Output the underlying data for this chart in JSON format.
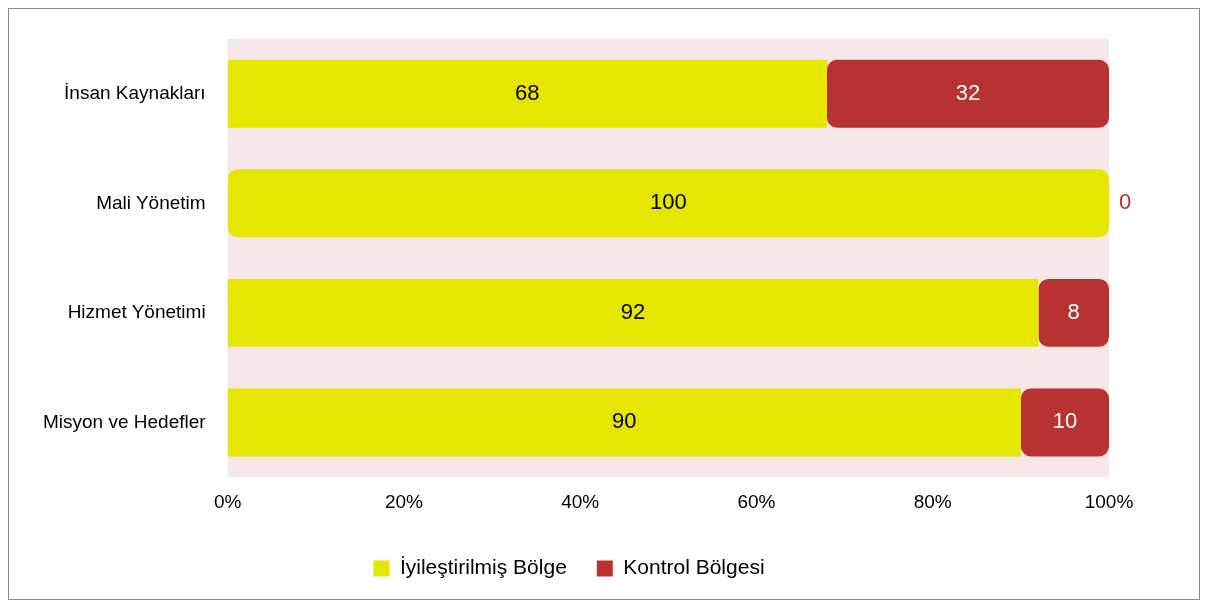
{
  "chart_data": {
    "type": "bar",
    "orientation": "horizontal",
    "stacked": true,
    "categories": [
      "İnsan Kaynakları",
      "Mali Yönetim",
      "Hizmet Yönetimi",
      "Misyon ve Hedefler"
    ],
    "series": [
      {
        "name": "İyileştirilmiş Bölge",
        "color": "#e6e600",
        "values": [
          68,
          100,
          92,
          90
        ]
      },
      {
        "name": "Kontrol Bölgesi",
        "color": "#b83232",
        "values": [
          32,
          0,
          8,
          10
        ]
      }
    ],
    "xlim": [
      0,
      100
    ],
    "xticks": [
      {
        "value": 0,
        "label": "0%"
      },
      {
        "value": 20,
        "label": "20%"
      },
      {
        "value": 40,
        "label": "40%"
      },
      {
        "value": 60,
        "label": "60%"
      },
      {
        "value": 80,
        "label": "80%"
      },
      {
        "value": 100,
        "label": "100%"
      }
    ],
    "data_labels": true,
    "legend": "bottom"
  }
}
